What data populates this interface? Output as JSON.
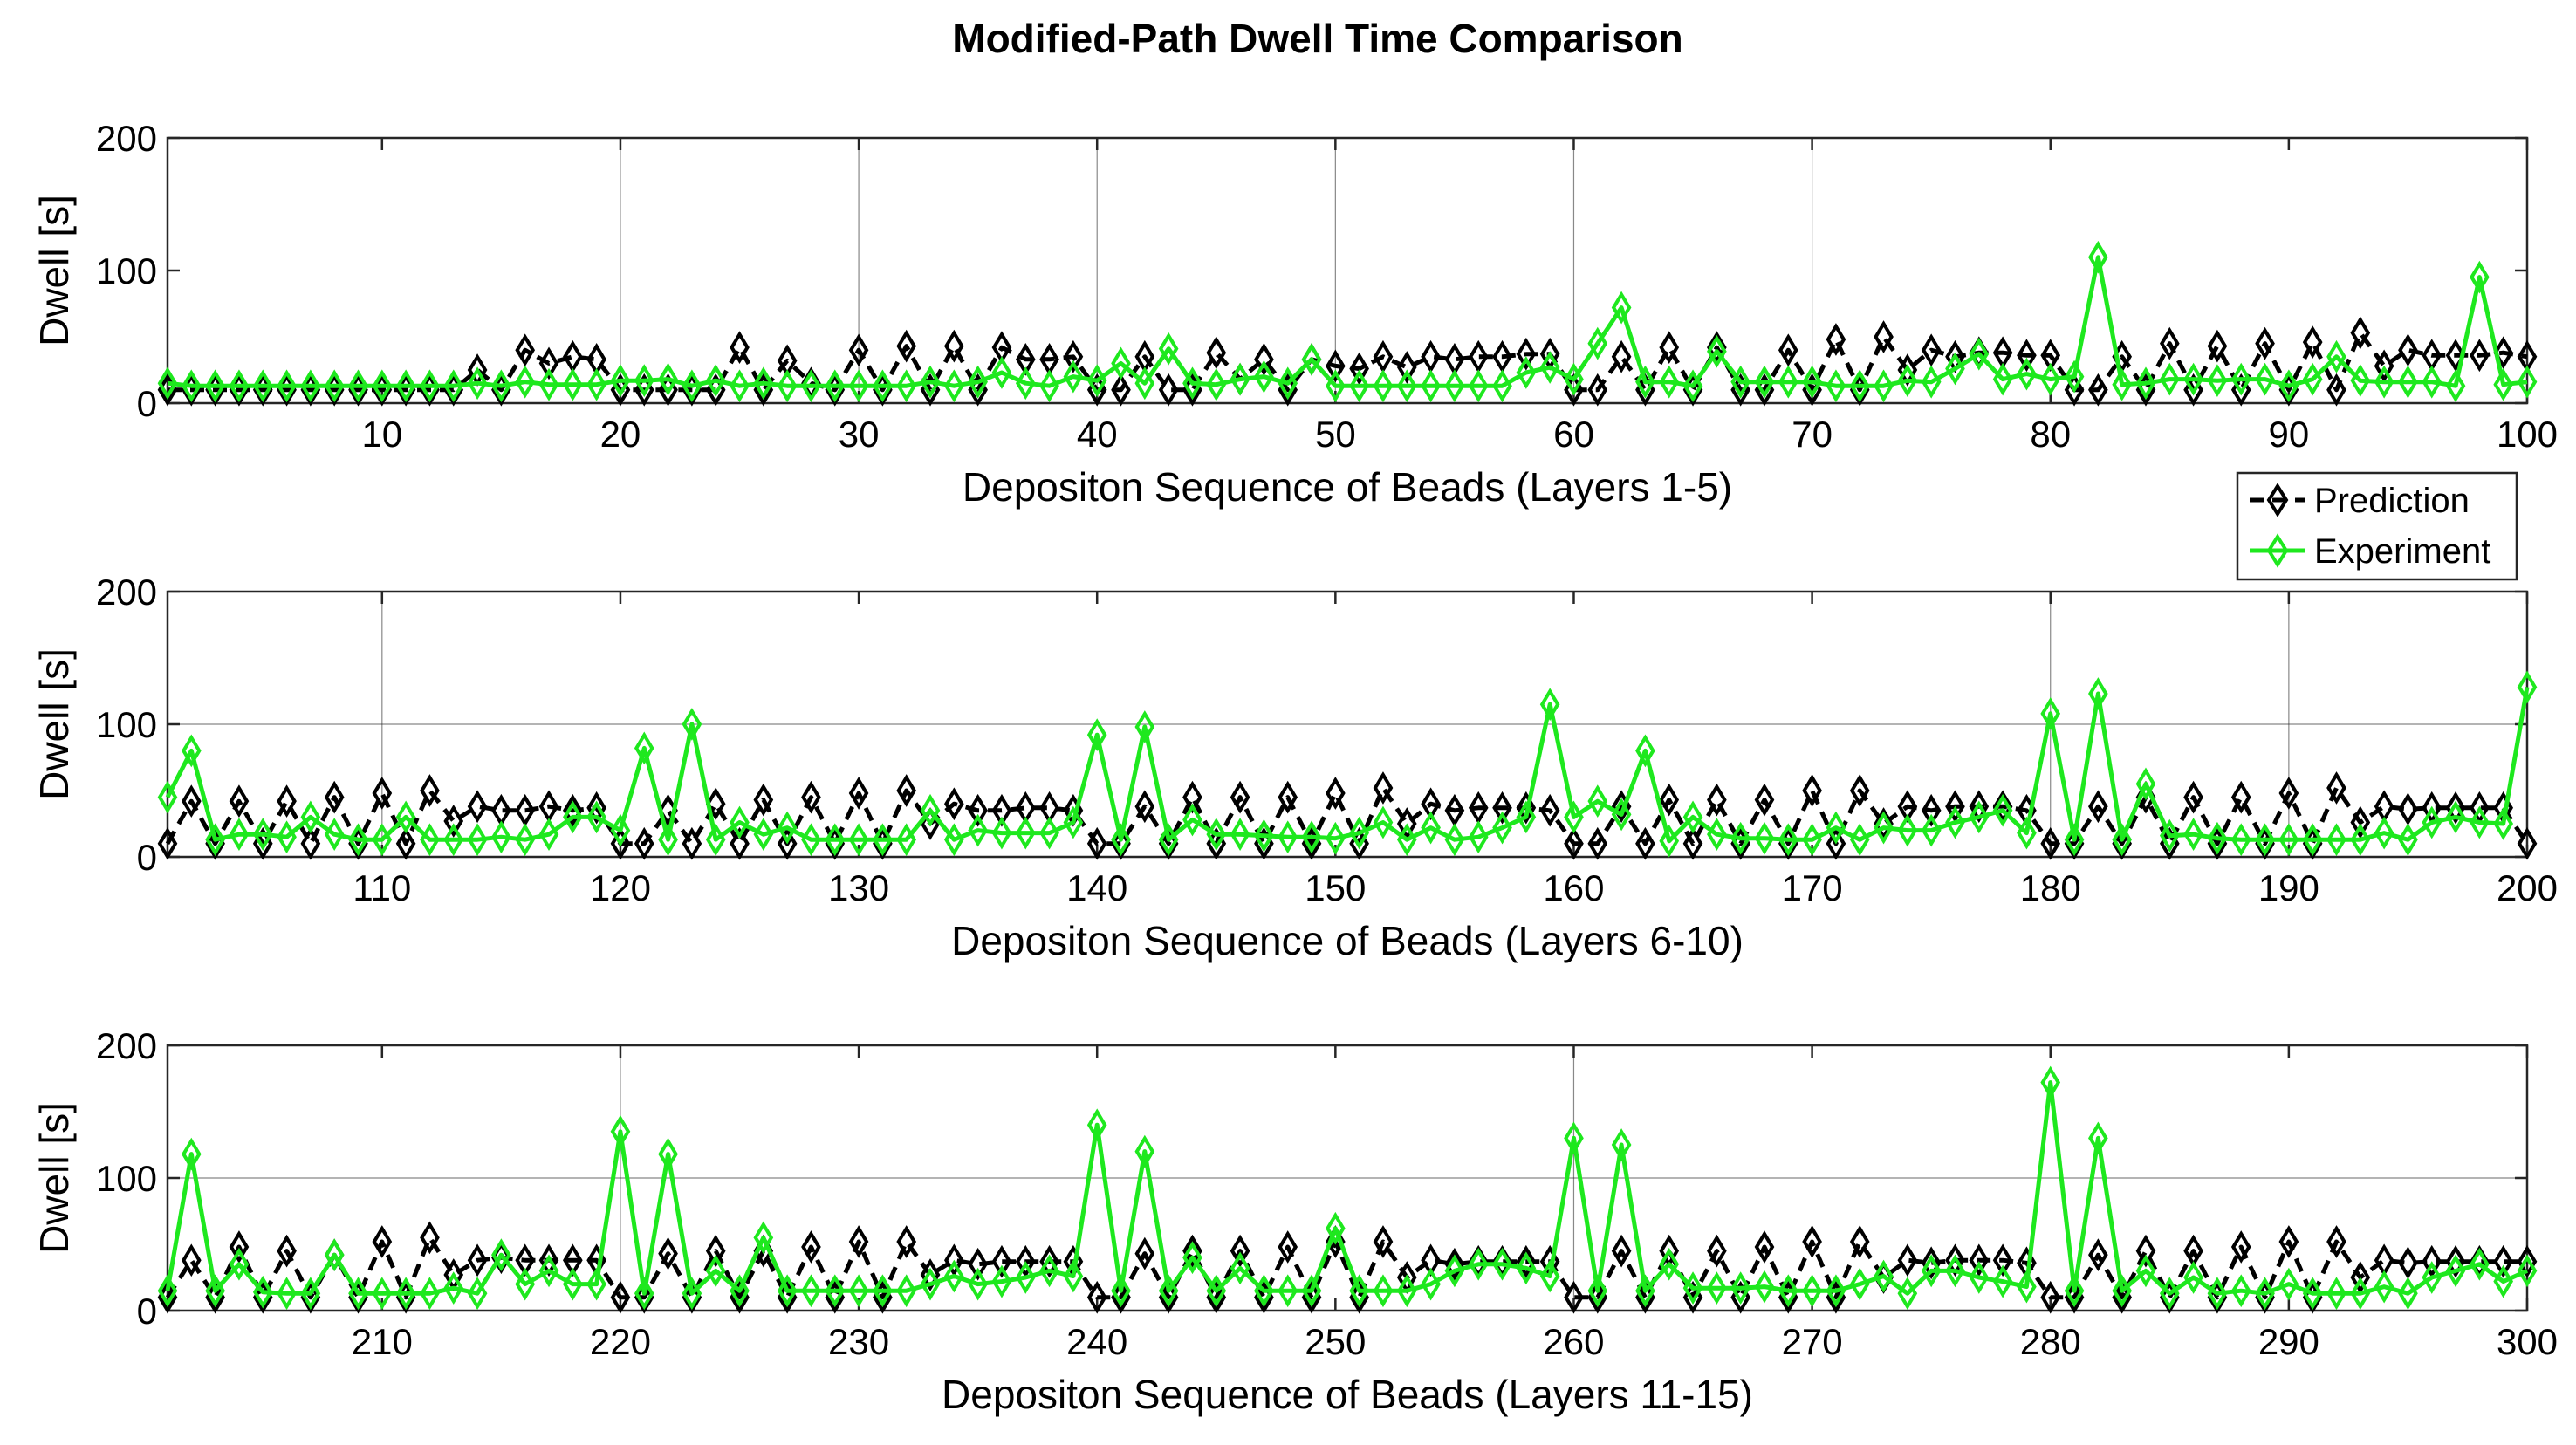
{
  "chart_data": {
    "title": "Modified-Path Dwell Time Comparison",
    "colors": {
      "prediction": "#000000",
      "experiment": "#1ee81e"
    },
    "legend": {
      "placement": "right, between top and middle panels",
      "entries": [
        {
          "name": "Prediction",
          "style": "dashed",
          "marker": "diamond"
        },
        {
          "name": "Experiment",
          "style": "solid",
          "marker": "diamond"
        }
      ]
    },
    "panels": [
      {
        "type": "line",
        "xlabel": "Depositon Sequence of Beads (Layers 1-5)",
        "ylabel": "Dwell [s]",
        "xlim": [
          1,
          100
        ],
        "ylim": [
          0,
          200
        ],
        "xticks": [
          10,
          20,
          30,
          40,
          50,
          60,
          70,
          80,
          90,
          100
        ],
        "yticks": [
          0,
          100,
          200
        ],
        "x_start": 1,
        "series": [
          {
            "name": "Prediction",
            "values": [
              10,
              10,
              10,
              10,
              10,
              10,
              10,
              10,
              10,
              10,
              10,
              10,
              10,
              25,
              10,
              40,
              30,
              35,
              33,
              10,
              10,
              10,
              10,
              10,
              42,
              10,
              32,
              15,
              10,
              40,
              10,
              43,
              10,
              43,
              10,
              42,
              33,
              33,
              35,
              10,
              10,
              35,
              10,
              10,
              38,
              18,
              33,
              10,
              33,
              28,
              26,
              35,
              27,
              35,
              33,
              35,
              35,
              37,
              37,
              10,
              10,
              35,
              10,
              42,
              10,
              42,
              10,
              10,
              40,
              10,
              48,
              10,
              50,
              25,
              40,
              35,
              38,
              38,
              36,
              36,
              10,
              10,
              35,
              10,
              45,
              10,
              43,
              10,
              45,
              10,
              46,
              10,
              53,
              28,
              40,
              36,
              36,
              36,
              38,
              35
            ]
          },
          {
            "name": "Experiment",
            "values": [
              15,
              13,
              13,
              13,
              13,
              13,
              13,
              13,
              13,
              13,
              13,
              13,
              13,
              15,
              13,
              16,
              14,
              14,
              14,
              17,
              17,
              18,
              13,
              17,
              13,
              15,
              13,
              13,
              13,
              13,
              13,
              13,
              16,
              13,
              16,
              23,
              15,
              13,
              20,
              17,
              30,
              15,
              41,
              15,
              14,
              18,
              20,
              15,
              33,
              13,
              13,
              13,
              13,
              13,
              13,
              13,
              13,
              23,
              27,
              18,
              45,
              72,
              16,
              16,
              13,
              39,
              16,
              16,
              16,
              16,
              13,
              13,
              13,
              17,
              16,
              26,
              37,
              18,
              22,
              18,
              20,
              110,
              14,
              15,
              18,
              18,
              17,
              18,
              18,
              13,
              18,
              35,
              17,
              16,
              16,
              16,
              13,
              95,
              14,
              16
            ]
          }
        ],
        "gridlines_x": [
          20,
          30,
          40,
          50,
          60,
          70
        ],
        "gridlines_y": []
      },
      {
        "type": "line",
        "xlabel": "Depositon Sequence of Beads (Layers 6-10)",
        "ylabel": "Dwell [s]",
        "xlim": [
          101,
          200
        ],
        "ylim": [
          0,
          200
        ],
        "xticks": [
          110,
          120,
          130,
          140,
          150,
          160,
          170,
          180,
          190,
          200
        ],
        "yticks": [
          0,
          100,
          200
        ],
        "x_start": 101,
        "series": [
          {
            "name": "Prediction",
            "values": [
              10,
              42,
              10,
              42,
              10,
              42,
              10,
              45,
              10,
              48,
              10,
              50,
              27,
              38,
              35,
              35,
              38,
              35,
              37,
              10,
              10,
              35,
              10,
              40,
              10,
              43,
              10,
              45,
              10,
              48,
              10,
              50,
              25,
              40,
              35,
              35,
              37,
              37,
              35,
              10,
              10,
              38,
              10,
              45,
              10,
              45,
              10,
              45,
              10,
              48,
              10,
              52,
              25,
              40,
              35,
              37,
              37,
              37,
              35,
              10,
              10,
              38,
              10,
              43,
              10,
              43,
              10,
              43,
              10,
              50,
              10,
              50,
              25,
              38,
              35,
              38,
              38,
              38,
              35,
              10,
              10,
              38,
              10,
              45,
              10,
              45,
              10,
              45,
              10,
              48,
              10,
              52,
              26,
              38,
              36,
              37,
              37,
              37,
              37,
              10
            ]
          },
          {
            "name": "Experiment",
            "values": [
              45,
              80,
              13,
              17,
              17,
              15,
              30,
              17,
              13,
              13,
              30,
              13,
              13,
              13,
              15,
              13,
              17,
              30,
              30,
              20,
              82,
              13,
              100,
              13,
              26,
              17,
              22,
              13,
              13,
              13,
              13,
              13,
              35,
              13,
              20,
              18,
              18,
              18,
              26,
              92,
              13,
              98,
              13,
              28,
              17,
              17,
              16,
              15,
              15,
              14,
              18,
              26,
              13,
              22,
              13,
              15,
              22,
              30,
              115,
              30,
              42,
              32,
              80,
              12,
              30,
              17,
              14,
              14,
              13,
              13,
              22,
              13,
              22,
              20,
              20,
              26,
              30,
              35,
              18,
              108,
              13,
              123,
              13,
              55,
              16,
              17,
              14,
              13,
              13,
              13,
              13,
              13,
              13,
              18,
              13,
              26,
              30,
              26,
              25,
              128
            ]
          }
        ],
        "gridlines_x": [
          110,
          180,
          190
        ],
        "gridlines_y": [
          100
        ]
      },
      {
        "type": "line",
        "xlabel": "Depositon Sequence of Beads (Layers 11-15)",
        "ylabel": "Dwell [s]",
        "xlim": [
          201,
          300
        ],
        "ylim": [
          0,
          200
        ],
        "xticks": [
          210,
          220,
          230,
          240,
          250,
          260,
          270,
          280,
          290,
          300
        ],
        "yticks": [
          0,
          100,
          200
        ],
        "x_start": 201,
        "series": [
          {
            "name": "Prediction",
            "values": [
              10,
              38,
              10,
              48,
              10,
              45,
              10,
              42,
              10,
              52,
              10,
              55,
              27,
              38,
              40,
              38,
              38,
              38,
              38,
              10,
              10,
              43,
              10,
              45,
              10,
              45,
              10,
              48,
              10,
              52,
              10,
              52,
              27,
              38,
              35,
              37,
              37,
              37,
              37,
              10,
              10,
              43,
              10,
              45,
              10,
              45,
              10,
              48,
              10,
              52,
              10,
              52,
              25,
              38,
              35,
              37,
              37,
              37,
              37,
              10,
              10,
              45,
              10,
              45,
              10,
              45,
              10,
              48,
              10,
              52,
              10,
              52,
              25,
              38,
              36,
              38,
              38,
              38,
              36,
              10,
              10,
              42,
              10,
              45,
              10,
              45,
              10,
              48,
              10,
              52,
              10,
              52,
              25,
              38,
              36,
              37,
              37,
              37,
              37,
              37
            ]
          },
          {
            "name": "Experiment",
            "values": [
              15,
              118,
              15,
              35,
              14,
              13,
              13,
              42,
              13,
              13,
              13,
              13,
              17,
              13,
              42,
              20,
              30,
              20,
              20,
              135,
              13,
              118,
              13,
              30,
              15,
              55,
              15,
              15,
              15,
              15,
              15,
              15,
              20,
              26,
              20,
              22,
              25,
              30,
              26,
              140,
              15,
              120,
              15,
              40,
              15,
              32,
              15,
              15,
              15,
              62,
              15,
              15,
              15,
              20,
              30,
              35,
              35,
              32,
              26,
              130,
              15,
              125,
              15,
              35,
              17,
              17,
              17,
              18,
              15,
              15,
              15,
              20,
              26,
              13,
              30,
              30,
              25,
              22,
              18,
              172,
              15,
              130,
              15,
              30,
              13,
              25,
              13,
              15,
              13,
              20,
              13,
              13,
              13,
              18,
              13,
              25,
              30,
              35,
              22,
              30
            ]
          }
        ],
        "gridlines_x": [
          220,
          260
        ],
        "gridlines_y": [
          100
        ]
      }
    ]
  }
}
